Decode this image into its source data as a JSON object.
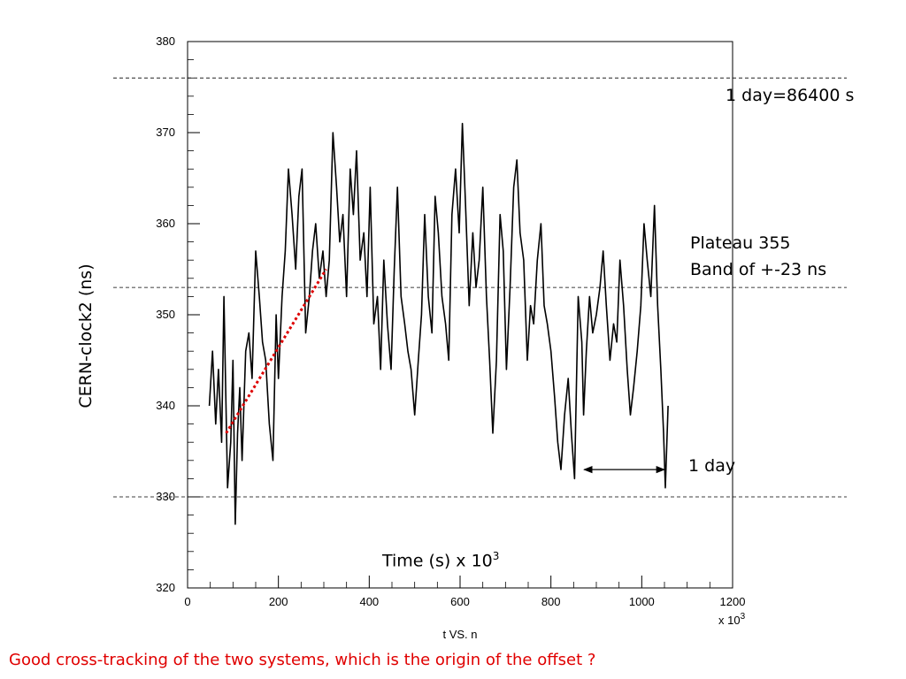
{
  "chart_data": {
    "type": "line",
    "xlabel": "t VS. n",
    "ylabel": "CERN-clock2 (ns)",
    "x_multiplier": "x 10",
    "x_multiplier_exp": "3",
    "xlim": [
      0,
      1200
    ],
    "ylim": [
      320,
      380
    ],
    "x_ticks": [
      0,
      200,
      400,
      600,
      800,
      1000,
      1200
    ],
    "y_ticks": [
      320,
      330,
      340,
      350,
      360,
      370,
      380
    ],
    "grid": false,
    "reference_lines_y": [
      376,
      353,
      330
    ],
    "trend_line": {
      "x": [
        85,
        305
      ],
      "y": [
        337,
        355
      ],
      "color": "#dd0000",
      "style": "dotted"
    },
    "day_marker": {
      "x_start": 873,
      "x_end": 1050,
      "y": 333
    },
    "series": [
      {
        "color": "#000000",
        "x": [
          48,
          55,
          62,
          68,
          75,
          80,
          88,
          95,
          100,
          105,
          110,
          115,
          120,
          128,
          135,
          142,
          150,
          158,
          165,
          172,
          180,
          188,
          195,
          200,
          208,
          215,
          222,
          230,
          238,
          245,
          252,
          260,
          268,
          275,
          282,
          290,
          298,
          305,
          312,
          320,
          328,
          335,
          342,
          350,
          358,
          365,
          372,
          380,
          388,
          395,
          402,
          410,
          418,
          425,
          432,
          440,
          448,
          455,
          462,
          470,
          478,
          485,
          492,
          500,
          508,
          515,
          522,
          530,
          538,
          545,
          552,
          560,
          568,
          575,
          582,
          590,
          598,
          605,
          612,
          620,
          628,
          635,
          642,
          650,
          658,
          665,
          672,
          680,
          688,
          695,
          702,
          710,
          718,
          725,
          732,
          740,
          748,
          755,
          762,
          770,
          778,
          785,
          792,
          800,
          808,
          815,
          822,
          830,
          838,
          845,
          852,
          860,
          868,
          872,
          878,
          885,
          892,
          900,
          908,
          915,
          922,
          930,
          938,
          945,
          952,
          960,
          968,
          975,
          982,
          990,
          998,
          1005,
          1012,
          1020,
          1028,
          1035,
          1042,
          1048,
          1052,
          1058
        ],
        "y": [
          340,
          346,
          338,
          344,
          336,
          352,
          331,
          336,
          345,
          327,
          337,
          342,
          334,
          346,
          348,
          343,
          357,
          352,
          347,
          345,
          338,
          334,
          350,
          343,
          352,
          357,
          366,
          361,
          355,
          363,
          366,
          348,
          352,
          357,
          360,
          354,
          357,
          352,
          356,
          370,
          364,
          358,
          361,
          352,
          366,
          361,
          368,
          356,
          359,
          352,
          364,
          349,
          352,
          344,
          356,
          349,
          344,
          355,
          364,
          352,
          349,
          346,
          344,
          339,
          345,
          350,
          361,
          352,
          348,
          363,
          359,
          352,
          349,
          345,
          361,
          366,
          359,
          371,
          362,
          351,
          359,
          353,
          356,
          364,
          352,
          345,
          337,
          345,
          361,
          357,
          344,
          353,
          364,
          367,
          359,
          356,
          345,
          351,
          349,
          356,
          360,
          351,
          349,
          346,
          341,
          336,
          333,
          339,
          343,
          337,
          332,
          352,
          347,
          339,
          346,
          352,
          348,
          350,
          353,
          357,
          351,
          345,
          349,
          347,
          356,
          351,
          344,
          339,
          342,
          346,
          351,
          360,
          356,
          352,
          362,
          351,
          344,
          337,
          331,
          340
        ]
      }
    ]
  },
  "annotations": {
    "day_seconds": "1 day=86400 s",
    "plateau": "Plateau 355",
    "band": "Band of +-23 ns",
    "one_day": "1 day",
    "time_label": "Time (s) x 10",
    "time_label_exp": "3"
  },
  "footer": "Good cross-tracking of the two systems, which is the origin of the offset ?",
  "colors": {
    "footer": "#e00000",
    "trend": "#dd0000"
  }
}
